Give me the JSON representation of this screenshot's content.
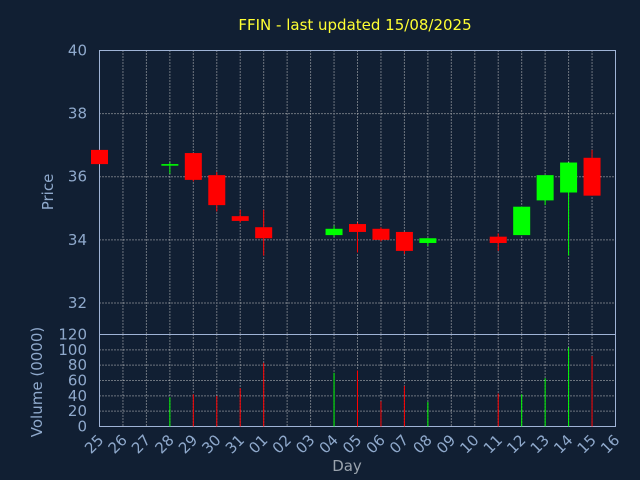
{
  "chart_data": [
    {
      "type": "candlestick",
      "title": "FFIN - last updated 15/08/2025",
      "ylabel": "Price",
      "ylim": [
        31,
        40
      ],
      "yticks": [
        32,
        34,
        36,
        38,
        40
      ],
      "grid": true,
      "categories": [
        "25",
        "26",
        "27",
        "28",
        "29",
        "30",
        "31",
        "01",
        "02",
        "03",
        "04",
        "05",
        "06",
        "07",
        "08",
        "09",
        "10",
        "11",
        "12",
        "13",
        "14",
        "15",
        "16"
      ],
      "candles": [
        {
          "x": "25",
          "open": 36.85,
          "high": 36.85,
          "low": 36.4,
          "close": 36.4
        },
        {
          "x": "28",
          "open": 36.35,
          "high": 36.45,
          "low": 36.1,
          "close": 36.4
        },
        {
          "x": "29",
          "open": 36.75,
          "high": 36.75,
          "low": 35.85,
          "close": 35.9
        },
        {
          "x": "30",
          "open": 36.05,
          "high": 36.15,
          "low": 34.9,
          "close": 35.1
        },
        {
          "x": "31",
          "open": 34.75,
          "high": 34.95,
          "low": 34.55,
          "close": 34.6
        },
        {
          "x": "01",
          "open": 34.4,
          "high": 34.95,
          "low": 33.5,
          "close": 34.05
        },
        {
          "x": "04",
          "open": 34.15,
          "high": 34.45,
          "low": 34.1,
          "close": 34.35
        },
        {
          "x": "05",
          "open": 34.5,
          "high": 34.55,
          "low": 33.6,
          "close": 34.25
        },
        {
          "x": "06",
          "open": 34.35,
          "high": 34.4,
          "low": 33.95,
          "close": 34.0
        },
        {
          "x": "07",
          "open": 34.25,
          "high": 34.25,
          "low": 33.55,
          "close": 33.65
        },
        {
          "x": "08",
          "open": 33.9,
          "high": 34.05,
          "low": 33.8,
          "close": 34.05
        },
        {
          "x": "11",
          "open": 34.1,
          "high": 34.2,
          "low": 33.65,
          "close": 33.9
        },
        {
          "x": "12",
          "open": 34.15,
          "high": 35.05,
          "low": 34.15,
          "close": 35.05
        },
        {
          "x": "13",
          "open": 35.25,
          "high": 36.05,
          "low": 35.1,
          "close": 36.05
        },
        {
          "x": "14",
          "open": 35.5,
          "high": 36.45,
          "low": 33.5,
          "close": 36.45
        },
        {
          "x": "15",
          "open": 36.6,
          "high": 36.85,
          "low": 35.4,
          "close": 35.4
        }
      ]
    },
    {
      "type": "bar",
      "ylabel": "Volume (0000)",
      "xlabel": "Day",
      "ylim": [
        0,
        120
      ],
      "yticks": [
        0,
        20,
        40,
        60,
        80,
        100,
        120
      ],
      "categories": [
        "25",
        "26",
        "27",
        "28",
        "29",
        "30",
        "31",
        "01",
        "02",
        "03",
        "04",
        "05",
        "06",
        "07",
        "08",
        "09",
        "10",
        "11",
        "12",
        "13",
        "14",
        "15",
        "16"
      ],
      "bars": [
        {
          "x": "28",
          "value": 38,
          "up": true
        },
        {
          "x": "29",
          "value": 42,
          "up": false
        },
        {
          "x": "30",
          "value": 40,
          "up": false
        },
        {
          "x": "31",
          "value": 50,
          "up": false
        },
        {
          "x": "01",
          "value": 83,
          "up": false
        },
        {
          "x": "04",
          "value": 70,
          "up": true
        },
        {
          "x": "05",
          "value": 73,
          "up": false
        },
        {
          "x": "06",
          "value": 33,
          "up": false
        },
        {
          "x": "07",
          "value": 53,
          "up": false
        },
        {
          "x": "08",
          "value": 32,
          "up": true
        },
        {
          "x": "11",
          "value": 43,
          "up": false
        },
        {
          "x": "12",
          "value": 42,
          "up": true
        },
        {
          "x": "13",
          "value": 63,
          "up": true
        },
        {
          "x": "14",
          "value": 103,
          "up": true
        },
        {
          "x": "15",
          "value": 92,
          "up": false
        }
      ]
    }
  ],
  "colors": {
    "background": "#111f33",
    "up": "#00ff00",
    "down": "#ff0000",
    "frame": "#9fb3d6",
    "grid": "#c8c8c8",
    "title": "#ffff33",
    "tick": "#8fa9cc"
  }
}
